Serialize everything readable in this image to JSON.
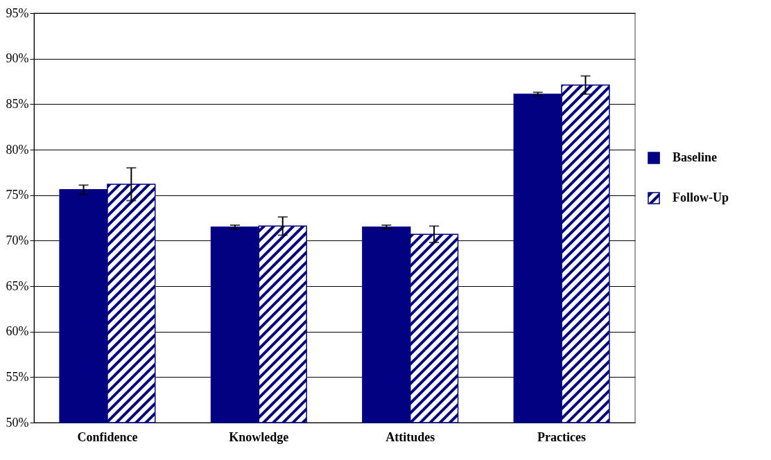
{
  "chart_data": {
    "type": "bar",
    "categories": [
      "Confidence",
      "Knowledge",
      "Attitudes",
      "Practices"
    ],
    "series": [
      {
        "name": "Baseline",
        "color": "#000080",
        "values": [
          75.6,
          71.5,
          71.5,
          86.1
        ],
        "errors": [
          0.5,
          0.2,
          0.2,
          0.2
        ]
      },
      {
        "name": "Follow-Up",
        "color": "#000080",
        "values": [
          76.2,
          71.6,
          70.7,
          87.1
        ],
        "errors": [
          1.8,
          1.0,
          0.9,
          1.0
        ]
      }
    ],
    "ylim": [
      50,
      95
    ],
    "yticks": [
      {
        "value": 50,
        "label": "50%"
      },
      {
        "value": 55,
        "label": "55%"
      },
      {
        "value": 60,
        "label": "60%"
      },
      {
        "value": 65,
        "label": "65%"
      },
      {
        "value": 70,
        "label": "70%"
      },
      {
        "value": 75,
        "label": "75%"
      },
      {
        "value": 80,
        "label": "80%"
      },
      {
        "value": 85,
        "label": "85%"
      },
      {
        "value": 90,
        "label": "90%"
      },
      {
        "value": 95,
        "label": "95%"
      }
    ],
    "grid": "y",
    "legend": "right"
  }
}
